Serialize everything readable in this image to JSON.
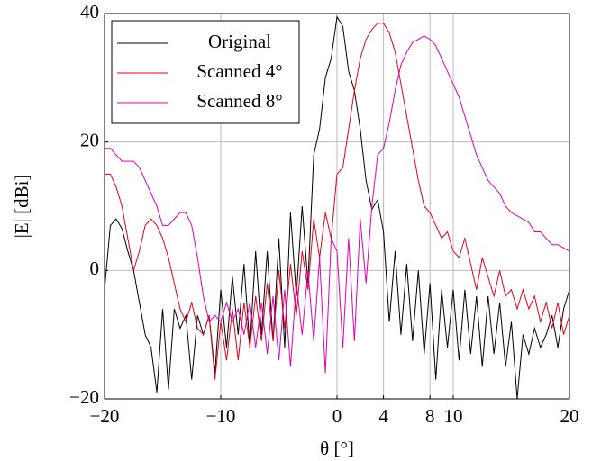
{
  "chart_data": {
    "type": "line",
    "xlabel": "θ [°]",
    "ylabel": "|E| [dBi]",
    "x": [
      -20,
      -19.5,
      -19,
      -18.5,
      -18,
      -17.5,
      -17,
      -16.5,
      -16,
      -15.5,
      -15,
      -14.5,
      -14,
      -13.5,
      -13,
      -12.5,
      -12,
      -11.5,
      -11,
      -10.5,
      -10,
      -9.5,
      -9,
      -8.5,
      -8,
      -7.5,
      -7,
      -6.5,
      -6,
      -5.5,
      -5,
      -4.5,
      -4,
      -3.5,
      -3,
      -2.5,
      -2,
      -1.5,
      -1,
      -0.5,
      0,
      0.5,
      1,
      1.5,
      2,
      2.5,
      3,
      3.5,
      4,
      4.5,
      5,
      5.5,
      6,
      6.5,
      7,
      7.5,
      8,
      8.5,
      9,
      9.5,
      10,
      10.5,
      11,
      11.5,
      12,
      12.5,
      13,
      13.5,
      14,
      14.5,
      15,
      15.5,
      16,
      16.5,
      17,
      17.5,
      18,
      18.5,
      19,
      19.5,
      20
    ],
    "series": [
      {
        "name": "Original",
        "color": "#000000",
        "values": [
          -3,
          7,
          8,
          6.5,
          3,
          0,
          -5,
          -10,
          -12,
          -19,
          -6,
          -18.5,
          -6,
          -9,
          -7,
          -17,
          -7,
          -10,
          -7,
          -16,
          -3,
          -12,
          -1,
          -10,
          1,
          -12,
          3,
          -10,
          3,
          -11,
          5,
          -12,
          9,
          -4,
          10,
          -2,
          18,
          22,
          30,
          33,
          39.5,
          38,
          31,
          28,
          22,
          14,
          9.5,
          11,
          6,
          -8,
          3,
          -10,
          1,
          -11,
          0,
          -13,
          -2,
          -17,
          -3,
          -12,
          -3,
          -14,
          -3,
          -13,
          -4,
          -15,
          -4,
          -13,
          -5,
          -15,
          -8,
          -20,
          -10,
          -13,
          -9,
          -12,
          -10,
          -7,
          -12,
          -6,
          -3
        ]
      },
      {
        "name": "Scanned 4°",
        "color": "#e8001c",
        "values": [
          15,
          15,
          13,
          10,
          5,
          0,
          3,
          7,
          8,
          7,
          5,
          2,
          -2,
          -6,
          -8,
          -5,
          -9,
          -10,
          -7,
          -17,
          -8,
          -14,
          -6,
          -14,
          -5,
          -12,
          -4,
          -11,
          -2,
          -11,
          0,
          -9,
          1,
          -7,
          3,
          -3,
          8,
          2,
          9,
          5,
          15,
          16,
          22,
          28,
          33,
          36,
          37.5,
          38.5,
          38.5,
          37,
          34,
          29,
          24,
          19,
          14,
          10,
          9,
          7,
          5,
          6,
          3,
          2,
          5,
          1,
          -3,
          2,
          -1,
          -4,
          0,
          -4,
          -3,
          -6,
          -3,
          -6,
          -4,
          -8,
          -5,
          -9,
          -5,
          -10,
          -7
        ]
      },
      {
        "name": "Scanned 8°",
        "color": "#e000b0",
        "values": [
          19,
          19,
          18,
          17,
          17,
          17,
          16,
          14,
          12,
          10,
          7,
          7,
          8,
          9,
          9,
          7,
          2,
          -4,
          -8,
          -7,
          -8,
          -5,
          -8,
          -6,
          -10,
          -5,
          -12,
          -5,
          -13,
          -4,
          -14,
          -3,
          -15,
          -2,
          -10,
          0,
          -11,
          2,
          -16,
          5,
          3,
          -12,
          5,
          -11,
          8,
          -2,
          10,
          18,
          19,
          23,
          28,
          32,
          34,
          35.5,
          36,
          36.5,
          36,
          35,
          33,
          31,
          29,
          27,
          24,
          21,
          18,
          16,
          14,
          13,
          12,
          10,
          9,
          8.5,
          8,
          7.5,
          6,
          6,
          5,
          4,
          4,
          3.5,
          3
        ]
      }
    ],
    "xlim": [
      -20,
      20
    ],
    "xticks": [
      {
        "value": -20,
        "label": "−20"
      },
      {
        "value": -10,
        "label": "−10"
      },
      0,
      4,
      8,
      10,
      20
    ],
    "ylim": [
      -20,
      40
    ],
    "yticks": [
      {
        "value": -20,
        "label": "−20"
      },
      0,
      20,
      40
    ],
    "grid": true,
    "legend": "upper left"
  }
}
